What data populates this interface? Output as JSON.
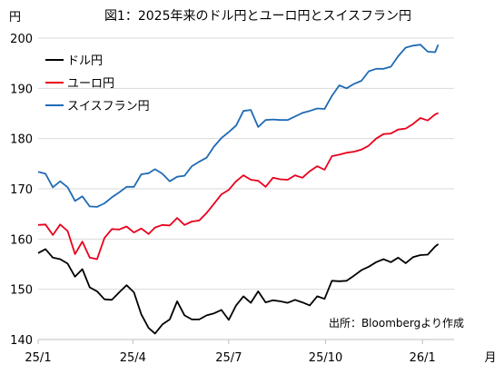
{
  "chart_data": {
    "type": "line",
    "title": "図1：2025年来のドル円とユーロ円とスイスフラン円",
    "y_unit_label": "円",
    "x_unit_label": "月",
    "source_note": "出所：Bloombergより作成",
    "ylim": [
      140,
      200
    ],
    "yticks": [
      140,
      150,
      160,
      170,
      180,
      190,
      200
    ],
    "xlim": [
      "2025-01-01",
      "2026-01-31"
    ],
    "xticks": [
      {
        "date": "2025-01-01",
        "label": "25/1"
      },
      {
        "date": "2025-04-01",
        "label": "25/4"
      },
      {
        "date": "2025-07-01",
        "label": "25/7"
      },
      {
        "date": "2025-10-01",
        "label": "25/10"
      },
      {
        "date": "2026-01-01",
        "label": "26/1"
      }
    ],
    "grid": "horizontal",
    "legend_position": "top-left",
    "series": [
      {
        "name": "ドル円",
        "color": "#000000",
        "points": [
          [
            "2025-01-01",
            157.2
          ],
          [
            "2025-01-08",
            158.0
          ],
          [
            "2025-01-15",
            156.3
          ],
          [
            "2025-01-22",
            156.0
          ],
          [
            "2025-01-29",
            155.1
          ],
          [
            "2025-02-05",
            152.5
          ],
          [
            "2025-02-12",
            154.0
          ],
          [
            "2025-02-19",
            150.4
          ],
          [
            "2025-02-26",
            149.6
          ],
          [
            "2025-03-05",
            148.0
          ],
          [
            "2025-03-12",
            147.9
          ],
          [
            "2025-03-19",
            149.4
          ],
          [
            "2025-03-26",
            150.8
          ],
          [
            "2025-04-02",
            149.4
          ],
          [
            "2025-04-09",
            145.0
          ],
          [
            "2025-04-16",
            142.3
          ],
          [
            "2025-04-22",
            141.2
          ],
          [
            "2025-04-29",
            143.0
          ],
          [
            "2025-05-06",
            144.0
          ],
          [
            "2025-05-13",
            147.6
          ],
          [
            "2025-05-20",
            144.8
          ],
          [
            "2025-05-27",
            144.0
          ],
          [
            "2025-06-03",
            144.0
          ],
          [
            "2025-06-10",
            144.8
          ],
          [
            "2025-06-17",
            145.2
          ],
          [
            "2025-06-24",
            145.9
          ],
          [
            "2025-07-01",
            143.9
          ],
          [
            "2025-07-08",
            146.8
          ],
          [
            "2025-07-15",
            148.6
          ],
          [
            "2025-07-22",
            147.3
          ],
          [
            "2025-07-29",
            149.6
          ],
          [
            "2025-08-05",
            147.4
          ],
          [
            "2025-08-12",
            147.8
          ],
          [
            "2025-08-19",
            147.6
          ],
          [
            "2025-08-26",
            147.3
          ],
          [
            "2025-09-02",
            147.9
          ],
          [
            "2025-09-09",
            147.4
          ],
          [
            "2025-09-16",
            146.8
          ],
          [
            "2025-09-23",
            148.6
          ],
          [
            "2025-09-30",
            148.1
          ],
          [
            "2025-10-07",
            151.7
          ],
          [
            "2025-10-14",
            151.6
          ],
          [
            "2025-10-21",
            151.7
          ],
          [
            "2025-10-28",
            152.7
          ],
          [
            "2025-11-04",
            153.8
          ],
          [
            "2025-11-11",
            154.5
          ],
          [
            "2025-11-18",
            155.4
          ],
          [
            "2025-11-25",
            156.0
          ],
          [
            "2025-12-02",
            155.4
          ],
          [
            "2025-12-09",
            156.3
          ],
          [
            "2025-12-16",
            155.2
          ],
          [
            "2025-12-23",
            156.4
          ],
          [
            "2025-12-30",
            156.8
          ],
          [
            "2026-01-06",
            156.9
          ],
          [
            "2026-01-13",
            158.5
          ],
          [
            "2026-01-16",
            159.0
          ]
        ]
      },
      {
        "name": "ユーロ円",
        "color": "#e8001c",
        "points": [
          [
            "2025-01-01",
            162.8
          ],
          [
            "2025-01-08",
            162.9
          ],
          [
            "2025-01-15",
            160.8
          ],
          [
            "2025-01-22",
            162.9
          ],
          [
            "2025-01-29",
            161.6
          ],
          [
            "2025-02-05",
            157.0
          ],
          [
            "2025-02-12",
            159.5
          ],
          [
            "2025-02-19",
            156.3
          ],
          [
            "2025-02-26",
            156.0
          ],
          [
            "2025-03-05",
            160.2
          ],
          [
            "2025-03-12",
            162.0
          ],
          [
            "2025-03-19",
            161.9
          ],
          [
            "2025-03-26",
            162.5
          ],
          [
            "2025-04-02",
            161.3
          ],
          [
            "2025-04-09",
            162.1
          ],
          [
            "2025-04-16",
            161.0
          ],
          [
            "2025-04-22",
            162.3
          ],
          [
            "2025-04-29",
            162.8
          ],
          [
            "2025-05-06",
            162.7
          ],
          [
            "2025-05-13",
            164.2
          ],
          [
            "2025-05-20",
            162.8
          ],
          [
            "2025-05-27",
            163.5
          ],
          [
            "2025-06-03",
            163.7
          ],
          [
            "2025-06-10",
            165.2
          ],
          [
            "2025-06-17",
            167.0
          ],
          [
            "2025-06-24",
            168.9
          ],
          [
            "2025-07-01",
            169.8
          ],
          [
            "2025-07-08",
            171.5
          ],
          [
            "2025-07-15",
            172.7
          ],
          [
            "2025-07-22",
            171.8
          ],
          [
            "2025-07-29",
            171.6
          ],
          [
            "2025-08-05",
            170.4
          ],
          [
            "2025-08-12",
            172.2
          ],
          [
            "2025-08-19",
            171.9
          ],
          [
            "2025-08-26",
            171.8
          ],
          [
            "2025-09-02",
            172.7
          ],
          [
            "2025-09-09",
            172.2
          ],
          [
            "2025-09-16",
            173.5
          ],
          [
            "2025-09-23",
            174.5
          ],
          [
            "2025-09-30",
            173.8
          ],
          [
            "2025-10-07",
            176.5
          ],
          [
            "2025-10-14",
            176.8
          ],
          [
            "2025-10-21",
            177.2
          ],
          [
            "2025-10-28",
            177.4
          ],
          [
            "2025-11-04",
            177.8
          ],
          [
            "2025-11-11",
            178.6
          ],
          [
            "2025-11-18",
            180.0
          ],
          [
            "2025-11-25",
            180.9
          ],
          [
            "2025-12-02",
            181.0
          ],
          [
            "2025-12-09",
            181.8
          ],
          [
            "2025-12-16",
            182.0
          ],
          [
            "2025-12-23",
            182.9
          ],
          [
            "2025-12-30",
            184.1
          ],
          [
            "2026-01-06",
            183.6
          ],
          [
            "2026-01-13",
            184.8
          ],
          [
            "2026-01-16",
            185.1
          ]
        ]
      },
      {
        "name": "スイスフラン円",
        "color": "#1f6bb5",
        "points": [
          [
            "2025-01-01",
            173.4
          ],
          [
            "2025-01-08",
            173.0
          ],
          [
            "2025-01-15",
            170.3
          ],
          [
            "2025-01-22",
            171.5
          ],
          [
            "2025-01-29",
            170.3
          ],
          [
            "2025-02-05",
            167.6
          ],
          [
            "2025-02-12",
            168.5
          ],
          [
            "2025-02-19",
            166.5
          ],
          [
            "2025-02-26",
            166.4
          ],
          [
            "2025-03-05",
            167.1
          ],
          [
            "2025-03-12",
            168.3
          ],
          [
            "2025-03-19",
            169.3
          ],
          [
            "2025-03-26",
            170.4
          ],
          [
            "2025-04-02",
            170.4
          ],
          [
            "2025-04-09",
            172.9
          ],
          [
            "2025-04-16",
            173.1
          ],
          [
            "2025-04-22",
            173.9
          ],
          [
            "2025-04-29",
            173.0
          ],
          [
            "2025-05-06",
            171.5
          ],
          [
            "2025-05-13",
            172.4
          ],
          [
            "2025-05-20",
            172.6
          ],
          [
            "2025-05-27",
            174.5
          ],
          [
            "2025-06-03",
            175.4
          ],
          [
            "2025-06-10",
            176.2
          ],
          [
            "2025-06-17",
            178.4
          ],
          [
            "2025-06-24",
            180.1
          ],
          [
            "2025-07-01",
            181.3
          ],
          [
            "2025-07-08",
            182.6
          ],
          [
            "2025-07-15",
            185.5
          ],
          [
            "2025-07-22",
            185.7
          ],
          [
            "2025-07-29",
            182.3
          ],
          [
            "2025-08-05",
            183.7
          ],
          [
            "2025-08-12",
            183.8
          ],
          [
            "2025-08-19",
            183.7
          ],
          [
            "2025-08-26",
            183.7
          ],
          [
            "2025-09-02",
            184.4
          ],
          [
            "2025-09-09",
            185.1
          ],
          [
            "2025-09-16",
            185.5
          ],
          [
            "2025-09-23",
            186.0
          ],
          [
            "2025-09-30",
            185.9
          ],
          [
            "2025-10-07",
            188.5
          ],
          [
            "2025-10-14",
            190.6
          ],
          [
            "2025-10-21",
            190.0
          ],
          [
            "2025-10-28",
            190.9
          ],
          [
            "2025-11-04",
            191.5
          ],
          [
            "2025-11-11",
            193.4
          ],
          [
            "2025-11-18",
            193.9
          ],
          [
            "2025-11-25",
            193.9
          ],
          [
            "2025-12-02",
            194.3
          ],
          [
            "2025-12-09",
            196.4
          ],
          [
            "2025-12-16",
            198.1
          ],
          [
            "2025-12-23",
            198.5
          ],
          [
            "2025-12-30",
            198.7
          ],
          [
            "2026-01-06",
            197.3
          ],
          [
            "2026-01-13",
            197.2
          ],
          [
            "2026-01-16",
            198.7
          ]
        ]
      }
    ]
  }
}
